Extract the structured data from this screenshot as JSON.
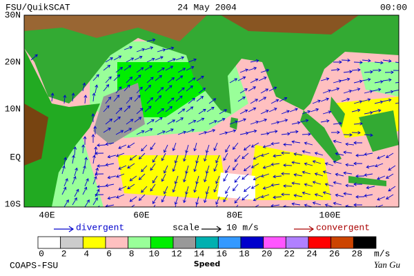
{
  "header": {
    "title": "FSU/QuikSCAT",
    "date": "24 May 2004",
    "time": "00:00"
  },
  "map": {
    "lat_labels": [
      "30N",
      "20N",
      "10N",
      "EQ",
      "10S"
    ],
    "lon_labels": [
      "40E",
      "60E",
      "80E",
      "100E"
    ]
  },
  "legend": {
    "divergent": "divergent",
    "scale": "scale",
    "scale_value": "10 m/s",
    "convergent": "convergent"
  },
  "colorbar": {
    "labels": [
      "0",
      "2",
      "4",
      "6",
      "8",
      "10",
      "12",
      "14",
      "16",
      "18",
      "20",
      "22",
      "24",
      "26",
      "28"
    ],
    "unit": "m/s",
    "title": "Speed",
    "colors": [
      "#ffffff",
      "#cccccc",
      "#ffff00",
      "#ffc0c0",
      "#99ff99",
      "#00ee00",
      "#999999",
      "#00b0b0",
      "#3399ff",
      "#0000cc",
      "#ff55ff",
      "#b080ff",
      "#ff0000",
      "#cc4400",
      "#000000"
    ]
  },
  "footer": {
    "left": "COAPS-FSU",
    "right": "Yan Gu"
  }
}
